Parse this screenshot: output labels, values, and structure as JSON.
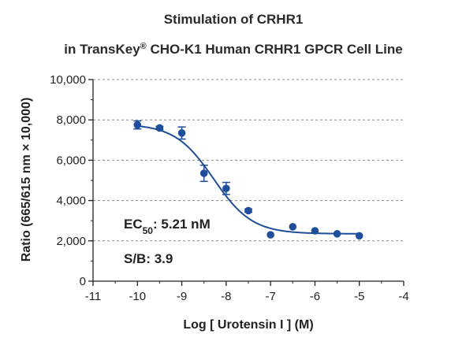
{
  "chart_data": {
    "type": "scatter",
    "title": "Stimulation of  CRHR1",
    "subtitle_prefix": "in TransKey",
    "subtitle_sup": "®",
    "subtitle_suffix": " CHO-K1 Human CRHR1 GPCR Cell Line",
    "xlabel": "Log [ Urotensin I ]  (M)",
    "ylabel": "Ratio (665/615 nm × 10,000)",
    "xlim": [
      -11,
      -4
    ],
    "ylim": [
      0,
      10000
    ],
    "xticks": [
      -11,
      -10,
      -9,
      -8,
      -7,
      -6,
      -5,
      -4
    ],
    "xtick_labels": [
      "-11",
      "-10",
      "-9",
      "-8",
      "-7",
      "-6",
      "-5",
      "-4"
    ],
    "yticks": [
      0,
      2000,
      4000,
      6000,
      8000,
      10000
    ],
    "ytick_labels": [
      "0",
      "2,000",
      "4,000",
      "6,000",
      "8,000",
      "10,000"
    ],
    "grid": "horizontal dashed",
    "series": [
      {
        "color": "#1f4e9a",
        "points": [
          {
            "x": -10.0,
            "y": 7750,
            "err": 200
          },
          {
            "x": -9.5,
            "y": 7600,
            "err": 80
          },
          {
            "x": -9.0,
            "y": 7350,
            "err": 300
          },
          {
            "x": -8.5,
            "y": 5350,
            "err": 400
          },
          {
            "x": -8.0,
            "y": 4600,
            "err": 300
          },
          {
            "x": -7.5,
            "y": 3500,
            "err": 80
          },
          {
            "x": -7.0,
            "y": 2300,
            "err": 0
          },
          {
            "x": -6.5,
            "y": 2700,
            "err": 0
          },
          {
            "x": -6.0,
            "y": 2500,
            "err": 0
          },
          {
            "x": -5.5,
            "y": 2350,
            "err": 0
          },
          {
            "x": -5.0,
            "y": 2250,
            "err": 0
          }
        ],
        "fit": {
          "bottom": 2350,
          "top": 7800,
          "log_ec50": -8.283,
          "hill": -1.0,
          "x_range": [
            -10.0,
            -5.0
          ]
        }
      }
    ],
    "annotations": {
      "ec50_prefix": "EC",
      "ec50_sub": "50",
      "ec50_suffix": ": 5.21 nM",
      "sb": "S/B: 3.9"
    }
  }
}
